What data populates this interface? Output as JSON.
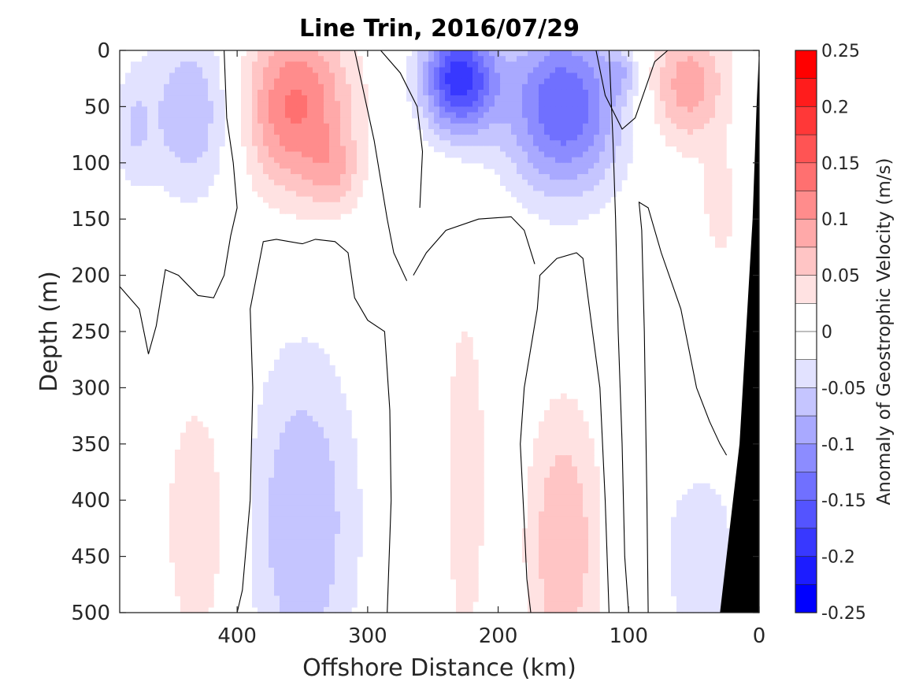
{
  "chart_data": {
    "type": "heatmap",
    "title": "Line Trin, 2016/07/29",
    "xlabel": "Offshore Distance (km)",
    "ylabel": "Depth (m)",
    "colorbar_label": "Anomaly of Geostrophic Velocity (m/s)",
    "x_range": [
      490,
      0
    ],
    "y_range": [
      0,
      500
    ],
    "x_ticks": [
      400,
      300,
      200,
      100,
      0
    ],
    "y_ticks": [
      0,
      50,
      100,
      150,
      200,
      250,
      300,
      350,
      400,
      450,
      500
    ],
    "colorbar": {
      "range": [
        -0.25,
        0.25
      ],
      "step": 0.025,
      "tick_values": [
        0.25,
        0.2,
        0.15,
        0.1,
        0.05,
        0,
        -0.05,
        -0.1,
        -0.15,
        -0.2,
        -0.25
      ],
      "tick_labels": [
        "0.25",
        "0.2",
        "0.15",
        "0.1",
        "0.05",
        "0",
        "-0.05",
        "-0.1",
        "-0.15",
        "-0.2",
        "-0.25"
      ],
      "colors_positive": [
        "#ffe2e2",
        "#ffc5c5",
        "#ffa9a9",
        "#ff8c8c",
        "#ff7070",
        "#ff5454",
        "#ff3838",
        "#ff1c1c",
        "#ff0000"
      ],
      "colors_negative": [
        "#e2e2ff",
        "#c5c5ff",
        "#a9a9ff",
        "#8c8cff",
        "#7070ff",
        "#5454ff",
        "#3838ff",
        "#1c1cff",
        "#0000ff"
      ]
    },
    "anomaly_features": [
      {
        "x": 480,
        "y": 70,
        "sx": 10,
        "sy": 40,
        "amp": -0.04
      },
      {
        "x": 435,
        "y": 55,
        "sx": 25,
        "sy": 55,
        "amp": -0.075
      },
      {
        "x": 355,
        "y": 50,
        "sx": 30,
        "sy": 55,
        "amp": 0.13
      },
      {
        "x": 325,
        "y": 110,
        "sx": 14,
        "sy": 25,
        "amp": 0.045
      },
      {
        "x": 230,
        "y": 25,
        "sx": 20,
        "sy": 35,
        "amp": -0.19
      },
      {
        "x": 150,
        "y": 50,
        "sx": 32,
        "sy": 55,
        "amp": -0.15
      },
      {
        "x": 55,
        "y": 30,
        "sx": 22,
        "sy": 40,
        "amp": 0.09
      },
      {
        "x": 30,
        "y": 140,
        "sx": 10,
        "sy": 35,
        "amp": 0.04
      },
      {
        "x": 105,
        "y": 20,
        "sx": 8,
        "sy": 15,
        "amp": -0.04
      },
      {
        "x": 430,
        "y": 420,
        "sx": 20,
        "sy": 90,
        "amp": 0.045
      },
      {
        "x": 350,
        "y": 420,
        "sx": 30,
        "sy": 110,
        "amp": -0.075
      },
      {
        "x": 225,
        "y": 380,
        "sx": 12,
        "sy": 120,
        "amp": 0.045
      },
      {
        "x": 150,
        "y": 440,
        "sx": 20,
        "sy": 90,
        "amp": 0.075
      },
      {
        "x": 45,
        "y": 450,
        "sx": 22,
        "sy": 60,
        "amp": -0.045
      }
    ],
    "zero_contours": [
      [
        [
          490,
          210
        ],
        [
          475,
          230
        ],
        [
          468,
          270
        ],
        [
          462,
          245
        ],
        [
          455,
          195
        ],
        [
          445,
          200
        ],
        [
          430,
          218
        ],
        [
          418,
          220
        ],
        [
          410,
          200
        ],
        [
          405,
          165
        ],
        [
          400,
          140
        ],
        [
          403,
          100
        ],
        [
          408,
          60
        ],
        [
          410,
          0
        ]
      ],
      [
        [
          400,
          500
        ],
        [
          396,
          480
        ],
        [
          390,
          400
        ],
        [
          388,
          300
        ],
        [
          390,
          230
        ],
        [
          385,
          200
        ],
        [
          380,
          170
        ],
        [
          370,
          168
        ],
        [
          350,
          172
        ],
        [
          340,
          168
        ],
        [
          325,
          170
        ],
        [
          315,
          180
        ],
        [
          310,
          220
        ],
        [
          300,
          240
        ],
        [
          287,
          250
        ],
        [
          283,
          320
        ],
        [
          282,
          400
        ],
        [
          285,
          500
        ]
      ],
      [
        [
          270,
          205
        ],
        [
          280,
          180
        ],
        [
          285,
          150
        ],
        [
          295,
          80
        ],
        [
          310,
          0
        ]
      ],
      [
        [
          175,
          500
        ],
        [
          178,
          470
        ],
        [
          180,
          420
        ],
        [
          183,
          350
        ],
        [
          180,
          300
        ],
        [
          170,
          230
        ],
        [
          168,
          200
        ],
        [
          155,
          185
        ],
        [
          140,
          180
        ],
        [
          135,
          185
        ],
        [
          130,
          230
        ],
        [
          122,
          300
        ],
        [
          118,
          400
        ],
        [
          115,
          500
        ]
      ],
      [
        [
          265,
          200
        ],
        [
          255,
          180
        ],
        [
          240,
          160
        ],
        [
          215,
          150
        ],
        [
          190,
          148
        ],
        [
          180,
          160
        ],
        [
          172,
          190
        ]
      ],
      [
        [
          290,
          0
        ],
        [
          275,
          20
        ],
        [
          262,
          50
        ],
        [
          258,
          90
        ],
        [
          260,
          140
        ]
      ],
      [
        [
          100,
          500
        ],
        [
          103,
          450
        ],
        [
          105,
          350
        ],
        [
          108,
          250
        ],
        [
          110,
          150
        ],
        [
          112,
          80
        ],
        [
          115,
          0
        ]
      ],
      [
        [
          85,
          500
        ],
        [
          86,
          400
        ],
        [
          88,
          250
        ],
        [
          90,
          160
        ],
        [
          92,
          135
        ],
        [
          85,
          140
        ],
        [
          75,
          180
        ],
        [
          60,
          230
        ],
        [
          48,
          300
        ],
        [
          38,
          330
        ],
        [
          30,
          350
        ],
        [
          25,
          360
        ]
      ],
      [
        [
          70,
          0
        ],
        [
          80,
          10
        ],
        [
          95,
          60
        ],
        [
          105,
          70
        ],
        [
          118,
          40
        ],
        [
          125,
          0
        ]
      ]
    ],
    "masked_region": [
      [
        0,
        0
      ],
      [
        0,
        500
      ],
      [
        30,
        500
      ],
      [
        15,
        350
      ],
      [
        10,
        250
      ],
      [
        5,
        150
      ],
      [
        2,
        50
      ]
    ]
  }
}
